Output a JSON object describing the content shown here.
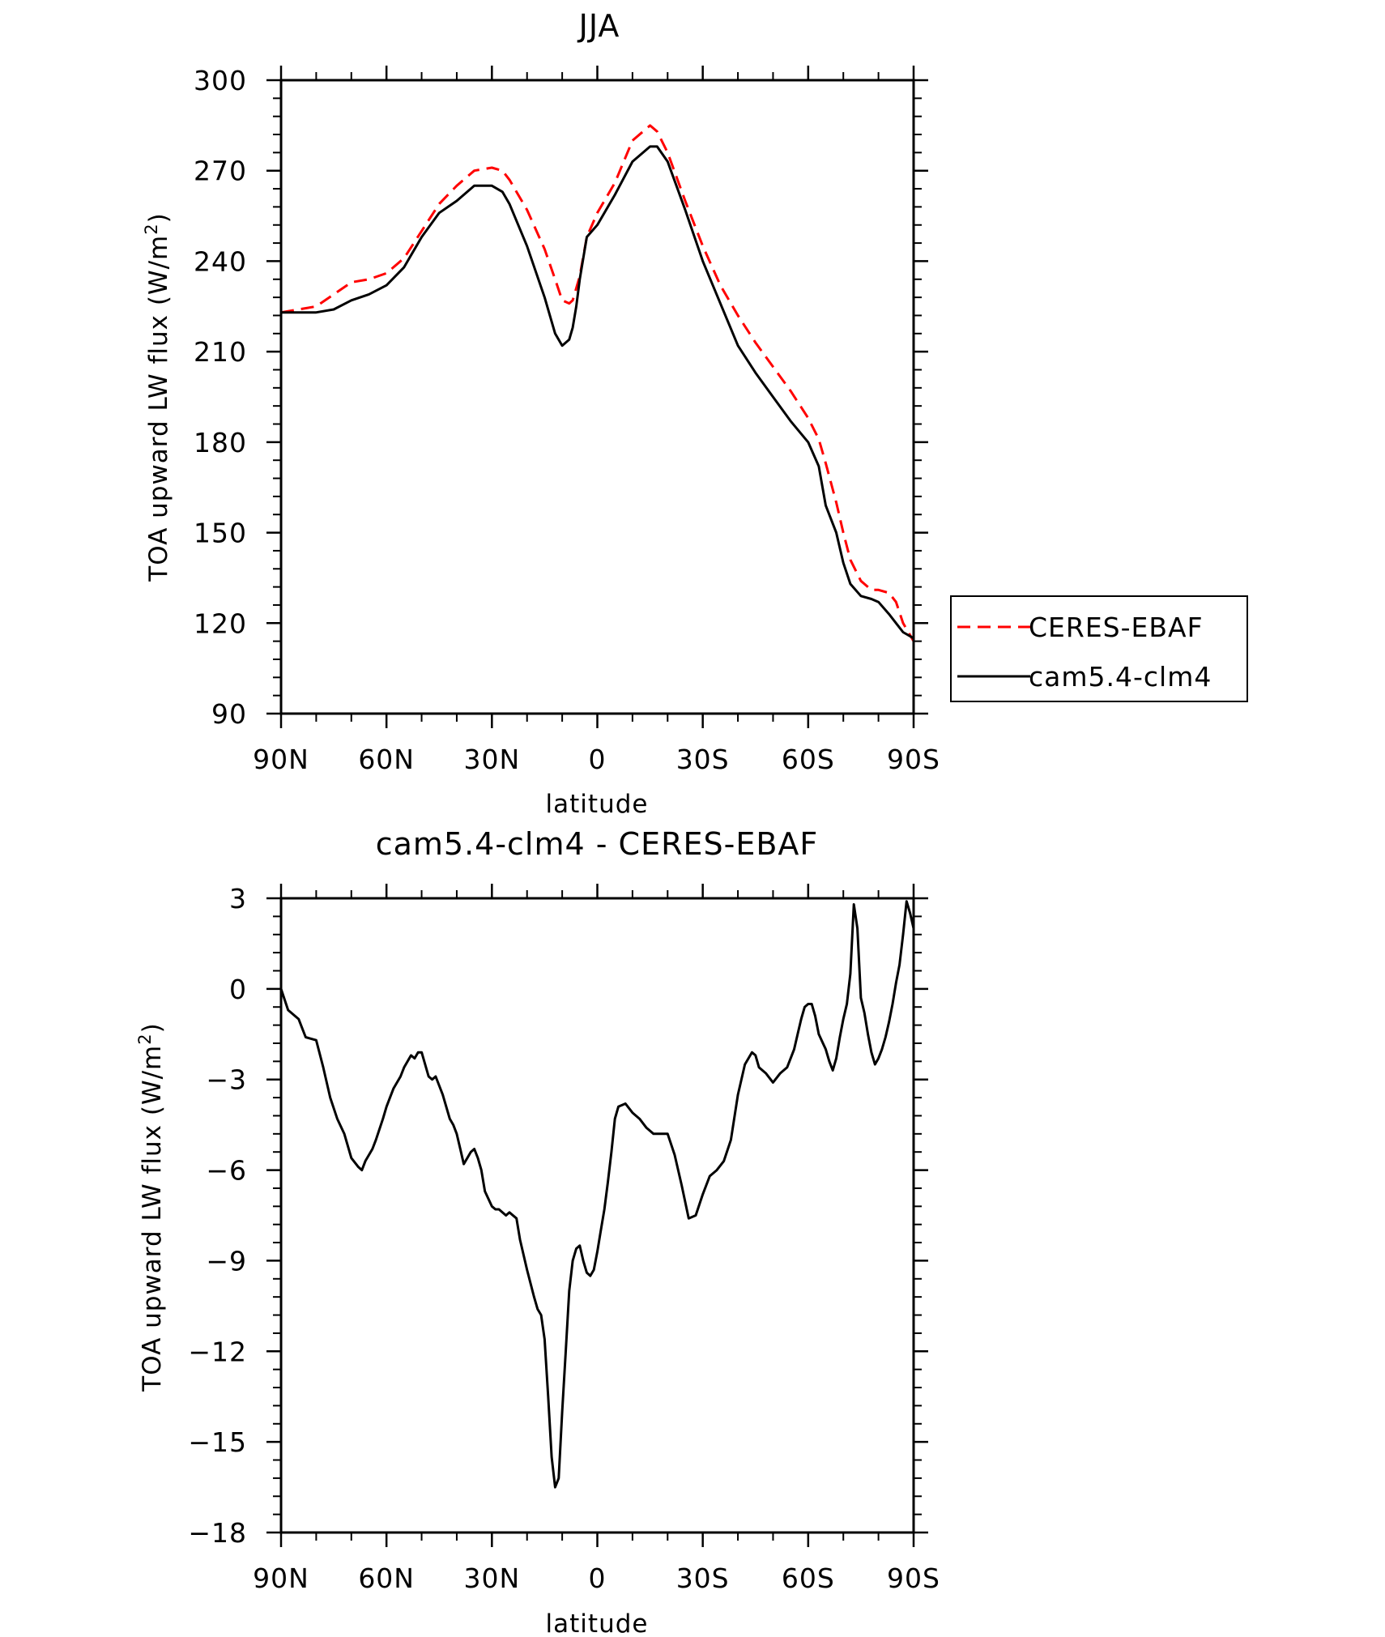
{
  "chart_data": [
    {
      "type": "line",
      "title": "JJA",
      "xlabel": "latitude",
      "ylabel": "TOA upward LW flux (W/m",
      "ylabel_sup": "2",
      "ylabel_close": ")",
      "xlim": [
        90,
        -90
      ],
      "ylim": [
        90,
        300
      ],
      "x_ticks": [
        90,
        60,
        30,
        0,
        -30,
        -60,
        -90
      ],
      "x_tick_labels": [
        "90N",
        "60N",
        "30N",
        "0",
        "30S",
        "60S",
        "90S"
      ],
      "y_ticks": [
        90,
        120,
        150,
        180,
        210,
        240,
        270,
        300
      ],
      "y_tick_labels": [
        "90",
        "120",
        "150",
        "180",
        "210",
        "240",
        "270",
        "300"
      ],
      "legend": [
        "CERES-EBAF",
        "cam5.4-clm4"
      ],
      "series": [
        {
          "name": "CERES-EBAF",
          "color": "#ff0000",
          "dash": "dashed",
          "x": [
            90,
            85,
            80,
            75,
            70,
            65,
            60,
            55,
            50,
            45,
            40,
            35,
            30,
            27,
            25,
            20,
            15,
            12,
            10,
            8,
            7,
            5,
            3,
            0,
            -5,
            -10,
            -15,
            -17,
            -20,
            -25,
            -30,
            -35,
            -40,
            -45,
            -50,
            -55,
            -60,
            -63,
            -65,
            -68,
            -70,
            -72,
            -75,
            -78,
            -80,
            -83,
            -85,
            -87,
            -90
          ],
          "y": [
            223,
            224,
            225,
            229,
            233,
            234,
            236,
            241,
            250,
            259,
            265,
            270,
            271,
            270,
            267,
            257,
            244,
            234,
            227,
            226,
            227,
            235,
            248,
            256,
            266,
            280,
            285,
            283,
            276,
            260,
            245,
            232,
            222,
            213,
            205,
            197,
            188,
            181,
            173,
            160,
            150,
            141,
            134,
            131,
            131,
            130,
            127,
            120,
            114
          ]
        },
        {
          "name": "cam5.4-clm4",
          "color": "#000000",
          "dash": "solid",
          "x": [
            90,
            85,
            80,
            75,
            70,
            65,
            60,
            55,
            50,
            45,
            40,
            35,
            30,
            27,
            25,
            20,
            15,
            12,
            10,
            8,
            7,
            6,
            5,
            3,
            0,
            -5,
            -10,
            -15,
            -17,
            -20,
            -25,
            -30,
            -35,
            -40,
            -45,
            -50,
            -55,
            -60,
            -63,
            -65,
            -68,
            -70,
            -72,
            -75,
            -78,
            -80,
            -83,
            -85,
            -87,
            -90
          ],
          "y": [
            223,
            223,
            223,
            224,
            227,
            229,
            232,
            238,
            248,
            256,
            260,
            265,
            265,
            263,
            259,
            245,
            228,
            216,
            212,
            214,
            218,
            225,
            234,
            248,
            252,
            262,
            273,
            278,
            278,
            273,
            257,
            240,
            226,
            212,
            203,
            195,
            187,
            180,
            172,
            159,
            150,
            140,
            133,
            129,
            128,
            127,
            123,
            120,
            117,
            115
          ]
        }
      ]
    },
    {
      "type": "line",
      "title": "cam5.4-clm4 - CERES-EBAF",
      "xlabel": "latitude",
      "ylabel": "TOA upward LW flux (W/m",
      "ylabel_sup": "2",
      "ylabel_close": ")",
      "xlim": [
        90,
        -90
      ],
      "ylim": [
        -18,
        3
      ],
      "x_ticks": [
        90,
        60,
        30,
        0,
        -30,
        -60,
        -90
      ],
      "x_tick_labels": [
        "90N",
        "60N",
        "30N",
        "0",
        "30S",
        "60S",
        "90S"
      ],
      "y_ticks": [
        -18,
        -15,
        -12,
        -9,
        -6,
        -3,
        0,
        3
      ],
      "y_tick_labels": [
        "−18",
        "−15",
        "−12",
        "−9",
        "−6",
        "−3",
        "0",
        "3"
      ],
      "series": [
        {
          "name": "cam5.4-clm4 - CERES-EBAF",
          "color": "#000000",
          "dash": "solid",
          "x": [
            90,
            88,
            85,
            83,
            80,
            78,
            76,
            74,
            72,
            70,
            68,
            67,
            66,
            65,
            64,
            63,
            61,
            60,
            59,
            58,
            56,
            55,
            53,
            52,
            51,
            50,
            48,
            47,
            46,
            44,
            42,
            41,
            40,
            39,
            38,
            36,
            35,
            34,
            33,
            32,
            30,
            29,
            28,
            26,
            25,
            23,
            22,
            20,
            18,
            17,
            16,
            15,
            14,
            13,
            12,
            11,
            10,
            9,
            8,
            7,
            6,
            5,
            4,
            3,
            2,
            1,
            0,
            -1,
            -2,
            -3,
            -4,
            -5,
            -6,
            -8,
            -10,
            -12,
            -14,
            -16,
            -18,
            -20,
            -22,
            -24,
            -26,
            -28,
            -30,
            -32,
            -34,
            -36,
            -38,
            -40,
            -42,
            -44,
            -45,
            -46,
            -48,
            -50,
            -52,
            -54,
            -56,
            -57,
            -58,
            -59,
            -60,
            -61,
            -62,
            -63,
            -65,
            -66,
            -67,
            -68,
            -69,
            -70,
            -71,
            -72,
            -73,
            -74,
            -75,
            -76,
            -77,
            -78,
            -79,
            -80,
            -81,
            -82,
            -83,
            -84,
            -85,
            -86,
            -87,
            -88,
            -89,
            -90
          ],
          "y": [
            0,
            -0.7,
            -1,
            -1.6,
            -1.7,
            -2.6,
            -3.6,
            -4.3,
            -4.8,
            -5.6,
            -5.9,
            -6.0,
            -5.7,
            -5.5,
            -5.3,
            -5.0,
            -4.3,
            -3.9,
            -3.6,
            -3.3,
            -2.9,
            -2.6,
            -2.2,
            -2.3,
            -2.1,
            -2.1,
            -2.9,
            -3.0,
            -2.9,
            -3.5,
            -4.3,
            -4.5,
            -4.8,
            -5.3,
            -5.8,
            -5.4,
            -5.3,
            -5.6,
            -6.0,
            -6.7,
            -7.2,
            -7.3,
            -7.3,
            -7.5,
            -7.4,
            -7.6,
            -8.3,
            -9.3,
            -10.2,
            -10.6,
            -10.8,
            -11.6,
            -13.5,
            -15.5,
            -16.5,
            -16.2,
            -14.0,
            -12.0,
            -10.0,
            -9.0,
            -8.6,
            -8.5,
            -9.0,
            -9.4,
            -9.5,
            -9.3,
            -8.7,
            -8.0,
            -7.3,
            -6.4,
            -5.4,
            -4.3,
            -3.9,
            -3.8,
            -4.1,
            -4.3,
            -4.6,
            -4.8,
            -4.8,
            -4.8,
            -5.5,
            -6.5,
            -7.6,
            -7.5,
            -6.8,
            -6.2,
            -6.0,
            -5.7,
            -5.0,
            -3.5,
            -2.5,
            -2.1,
            -2.2,
            -2.6,
            -2.8,
            -3.1,
            -2.8,
            -2.6,
            -2.0,
            -1.5,
            -1.0,
            -0.6,
            -0.5,
            -0.5,
            -0.9,
            -1.5,
            -2.0,
            -2.4,
            -2.7,
            -2.3,
            -1.6,
            -1.0,
            -0.5,
            0.5,
            2.8,
            2.0,
            -0.3,
            -0.8,
            -1.5,
            -2.1,
            -2.5,
            -2.3,
            -2.0,
            -1.6,
            -1.1,
            -0.5,
            0.2,
            0.8,
            1.8,
            2.9,
            2.5,
            2.0
          ]
        }
      ]
    }
  ]
}
